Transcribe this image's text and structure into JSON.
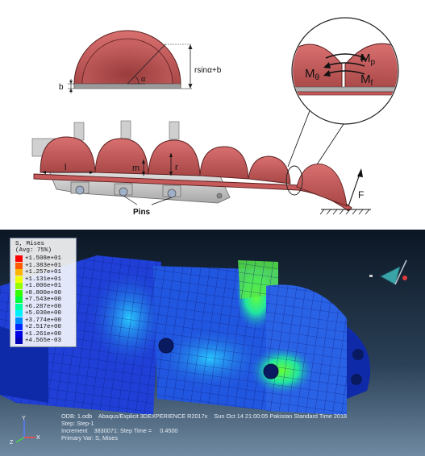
{
  "diagram": {
    "dim_rsina_b": "rsinα+b",
    "dim_b": "b",
    "angle_alpha": "α",
    "label_l": "l",
    "label_m": "m",
    "label_r": "r",
    "label_pins": "Pins",
    "label_F": "F",
    "moment_theta_main": "M",
    "moment_theta_sub": "θ",
    "moment_p_main": "M",
    "moment_p_sub": "p",
    "moment_f_main": "M",
    "moment_f_sub": "f"
  },
  "simulation": {
    "legend": {
      "title_line1": "S, Mises",
      "title_line2": "(Avg: 75%)",
      "levels": [
        {
          "value": "+1.508e+01",
          "color": "#ff0000"
        },
        {
          "value": "+1.383e+01",
          "color": "#ff5a00"
        },
        {
          "value": "+1.257e+01",
          "color": "#ffb400"
        },
        {
          "value": "+1.131e+01",
          "color": "#f0ff00"
        },
        {
          "value": "+1.006e+01",
          "color": "#96ff00"
        },
        {
          "value": "+8.800e+00",
          "color": "#32ff00"
        },
        {
          "value": "+7.543e+00",
          "color": "#00ff3c"
        },
        {
          "value": "+6.287e+00",
          "color": "#00ffa0"
        },
        {
          "value": "+5.030e+00",
          "color": "#00f0ff"
        },
        {
          "value": "+3.774e+00",
          "color": "#008cff"
        },
        {
          "value": "+2.517e+00",
          "color": "#0028ff"
        },
        {
          "value": "+1.261e+00",
          "color": "#0000e6"
        },
        {
          "value": "+4.565e-03",
          "color": "#0000b4"
        }
      ]
    },
    "info": {
      "odb_line": "ODB: 1.odb    Abaqus/Explicit 3DEXPERIENCE R2017x    Sun Oct 14 21:00:05 Pakistan Standard Time 2018",
      "step_line": "Step: Step-1",
      "increment_line": "Increment    3830071: Step Time =     0.4500",
      "primary_var_line": "Primary Var: S, Mises"
    },
    "triad": {
      "x_label": "X",
      "y_label": "Y",
      "z_label": "Z"
    }
  },
  "colors": {
    "shell_fill": "#c65a5a",
    "shell_stroke": "#5a1e1e",
    "frame_gray": "#c9c9c9",
    "mesh_blue": "#1f3fd6"
  }
}
